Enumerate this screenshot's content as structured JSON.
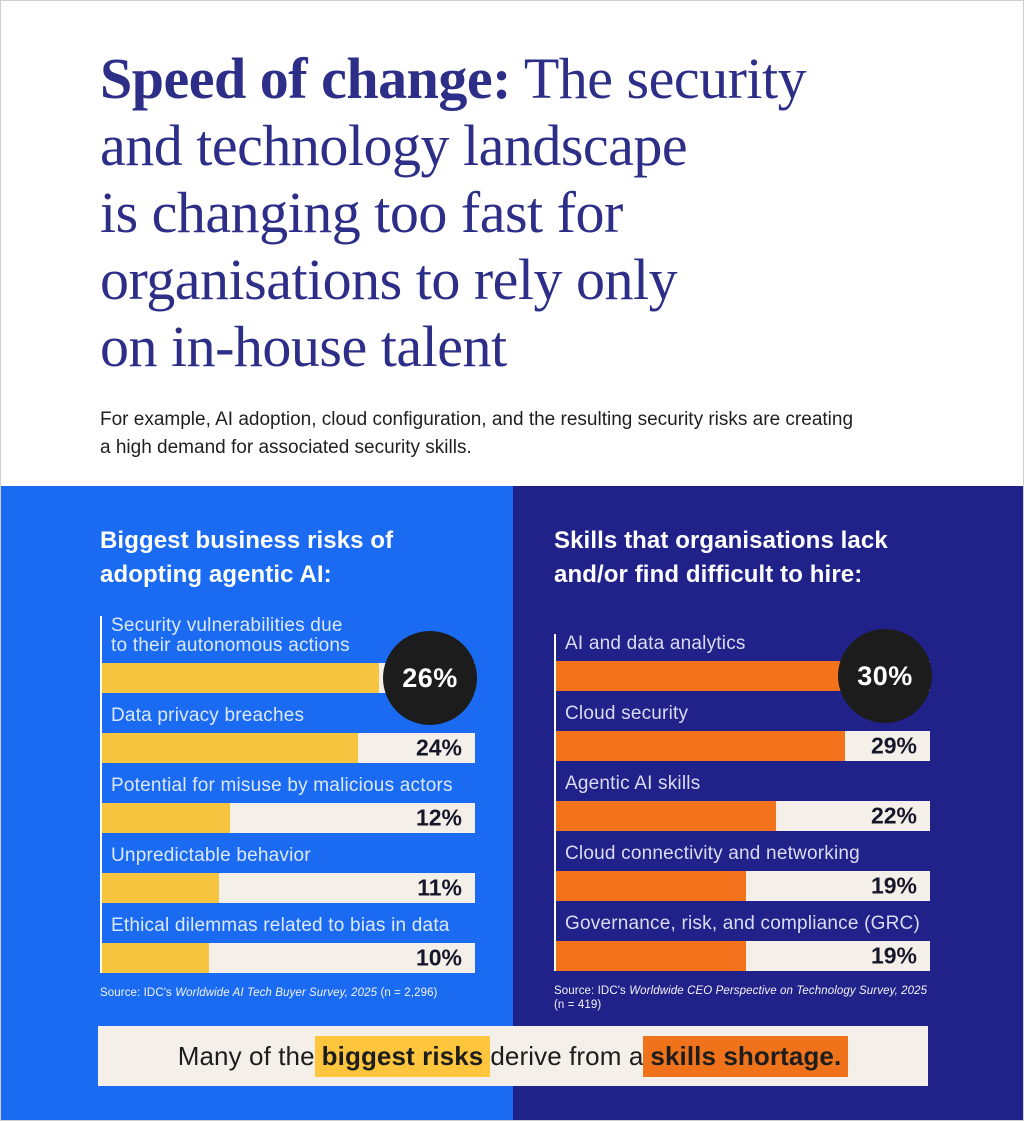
{
  "header": {
    "title_bold": "Speed of change:",
    "title_rest": " The security\nand technology landscape\nis changing too fast for\norganisations to rely only\non in-house talent",
    "subtitle": "For example, AI adoption, cloud configuration, and the resulting security risks are creating\na high demand for associated security skills."
  },
  "colors": {
    "panel_left": "#1A6BF2",
    "panel_right": "#21218A",
    "title_navy": "#2C2E87",
    "track_cream": "#F4F0E9",
    "bar_yellow": "#F7C440",
    "bar_orange": "#F3731D",
    "badge_dark": "#1C1C1C",
    "highlight_yellow": "#FFC53D",
    "highlight_orange": "#F0731C"
  },
  "chart_data": [
    {
      "type": "bar",
      "title": "Biggest business risks of\nadopting agentic AI:",
      "categories": [
        "Security vulnerabilities due\nto their autonomous actions",
        "Data privacy breaches",
        "Potential for misuse by malicious actors",
        "Unpredictable behavior",
        "Ethical dilemmas related to bias in data"
      ],
      "values": [
        26,
        24,
        12,
        11,
        10
      ],
      "unit": "%",
      "highlight_index": 0,
      "scale_max": 35,
      "bar_color": "#F7C440",
      "legend_position": "none",
      "grid": false,
      "source_prefix": "Source: IDC's ",
      "source_italic": "Worldwide AI Tech Buyer Survey, 2025",
      "source_suffix": " (n = 2,296)"
    },
    {
      "type": "bar",
      "title": "Skills that organisations lack\nand/or find difficult to hire:",
      "categories": [
        "AI and data analytics",
        "Cloud security",
        "Agentic AI skills",
        "Cloud connectivity and networking",
        "Governance, risk, and compliance (GRC)"
      ],
      "values": [
        30,
        29,
        22,
        19,
        19
      ],
      "unit": "%",
      "highlight_index": 0,
      "scale_max": 37.5,
      "bar_color": "#F3731D",
      "legend_position": "none",
      "grid": false,
      "source_prefix": "Source: IDC's ",
      "source_italic": "Worldwide CEO Perspective on Technology Survey, 2025",
      "source_suffix": " (n = 419)"
    }
  ],
  "banner": {
    "text_parts": [
      {
        "text": "Many of the ",
        "style": "plain"
      },
      {
        "text": "biggest risks",
        "style": "highlight-yellow"
      },
      {
        "text": " derive from a ",
        "style": "plain"
      },
      {
        "text": "skills shortage.",
        "style": "highlight-orange"
      }
    ]
  }
}
